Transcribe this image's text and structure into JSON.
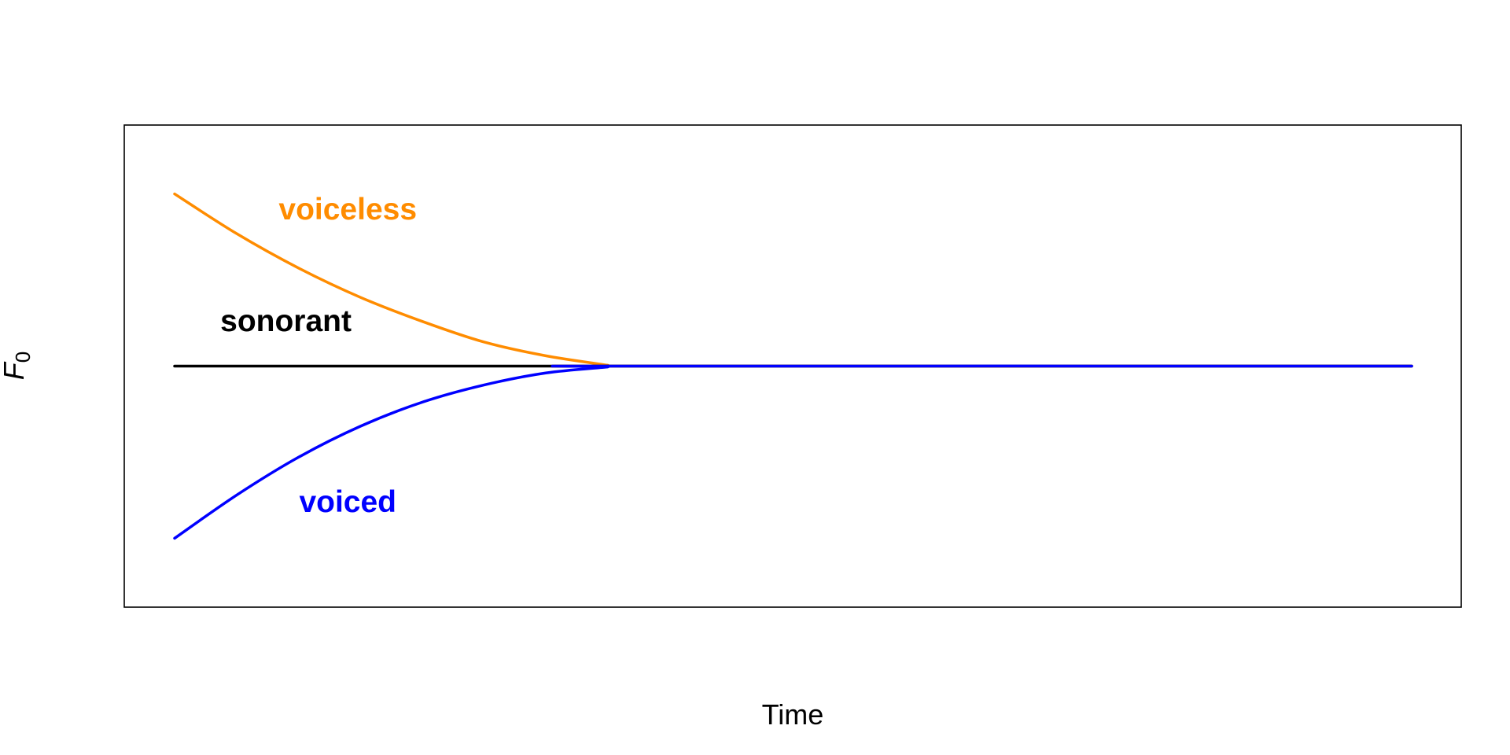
{
  "chart_data": {
    "type": "line",
    "title": "",
    "xlabel": "Time",
    "ylabel": {
      "main": "F",
      "subscript": "0"
    },
    "xlim": [
      0,
      1
    ],
    "ylim": [
      -1.4,
      1.4
    ],
    "axes_visible": false,
    "grid": false,
    "series": [
      {
        "name": "voiceless",
        "color": "#FF8C00",
        "x": [
          0,
          0.05,
          0.1,
          0.15,
          0.2,
          0.25,
          0.3,
          0.35,
          0.352,
          1
        ],
        "y": [
          1.0,
          0.77,
          0.57,
          0.4,
          0.26,
          0.14,
          0.06,
          0.005,
          0,
          0
        ]
      },
      {
        "name": "sonorant",
        "color": "#000000",
        "x": [
          0,
          1
        ],
        "y": [
          0,
          0
        ]
      },
      {
        "name": "voiced",
        "color": "#0000FF",
        "x": [
          0,
          0.05,
          0.1,
          0.15,
          0.2,
          0.25,
          0.3,
          0.35,
          0.352,
          1
        ],
        "y": [
          -1.0,
          -0.75,
          -0.53,
          -0.35,
          -0.21,
          -0.11,
          -0.04,
          -0.005,
          0,
          0
        ]
      }
    ],
    "annotations": [
      {
        "text": "voiceless",
        "x": 0.14,
        "y": 0.9,
        "color": "#FF8C00"
      },
      {
        "text": "sonorant",
        "x": 0.09,
        "y": 0.25,
        "color": "#000000"
      },
      {
        "text": "voiced",
        "x": 0.14,
        "y": -0.8,
        "color": "#0000FF"
      }
    ]
  }
}
